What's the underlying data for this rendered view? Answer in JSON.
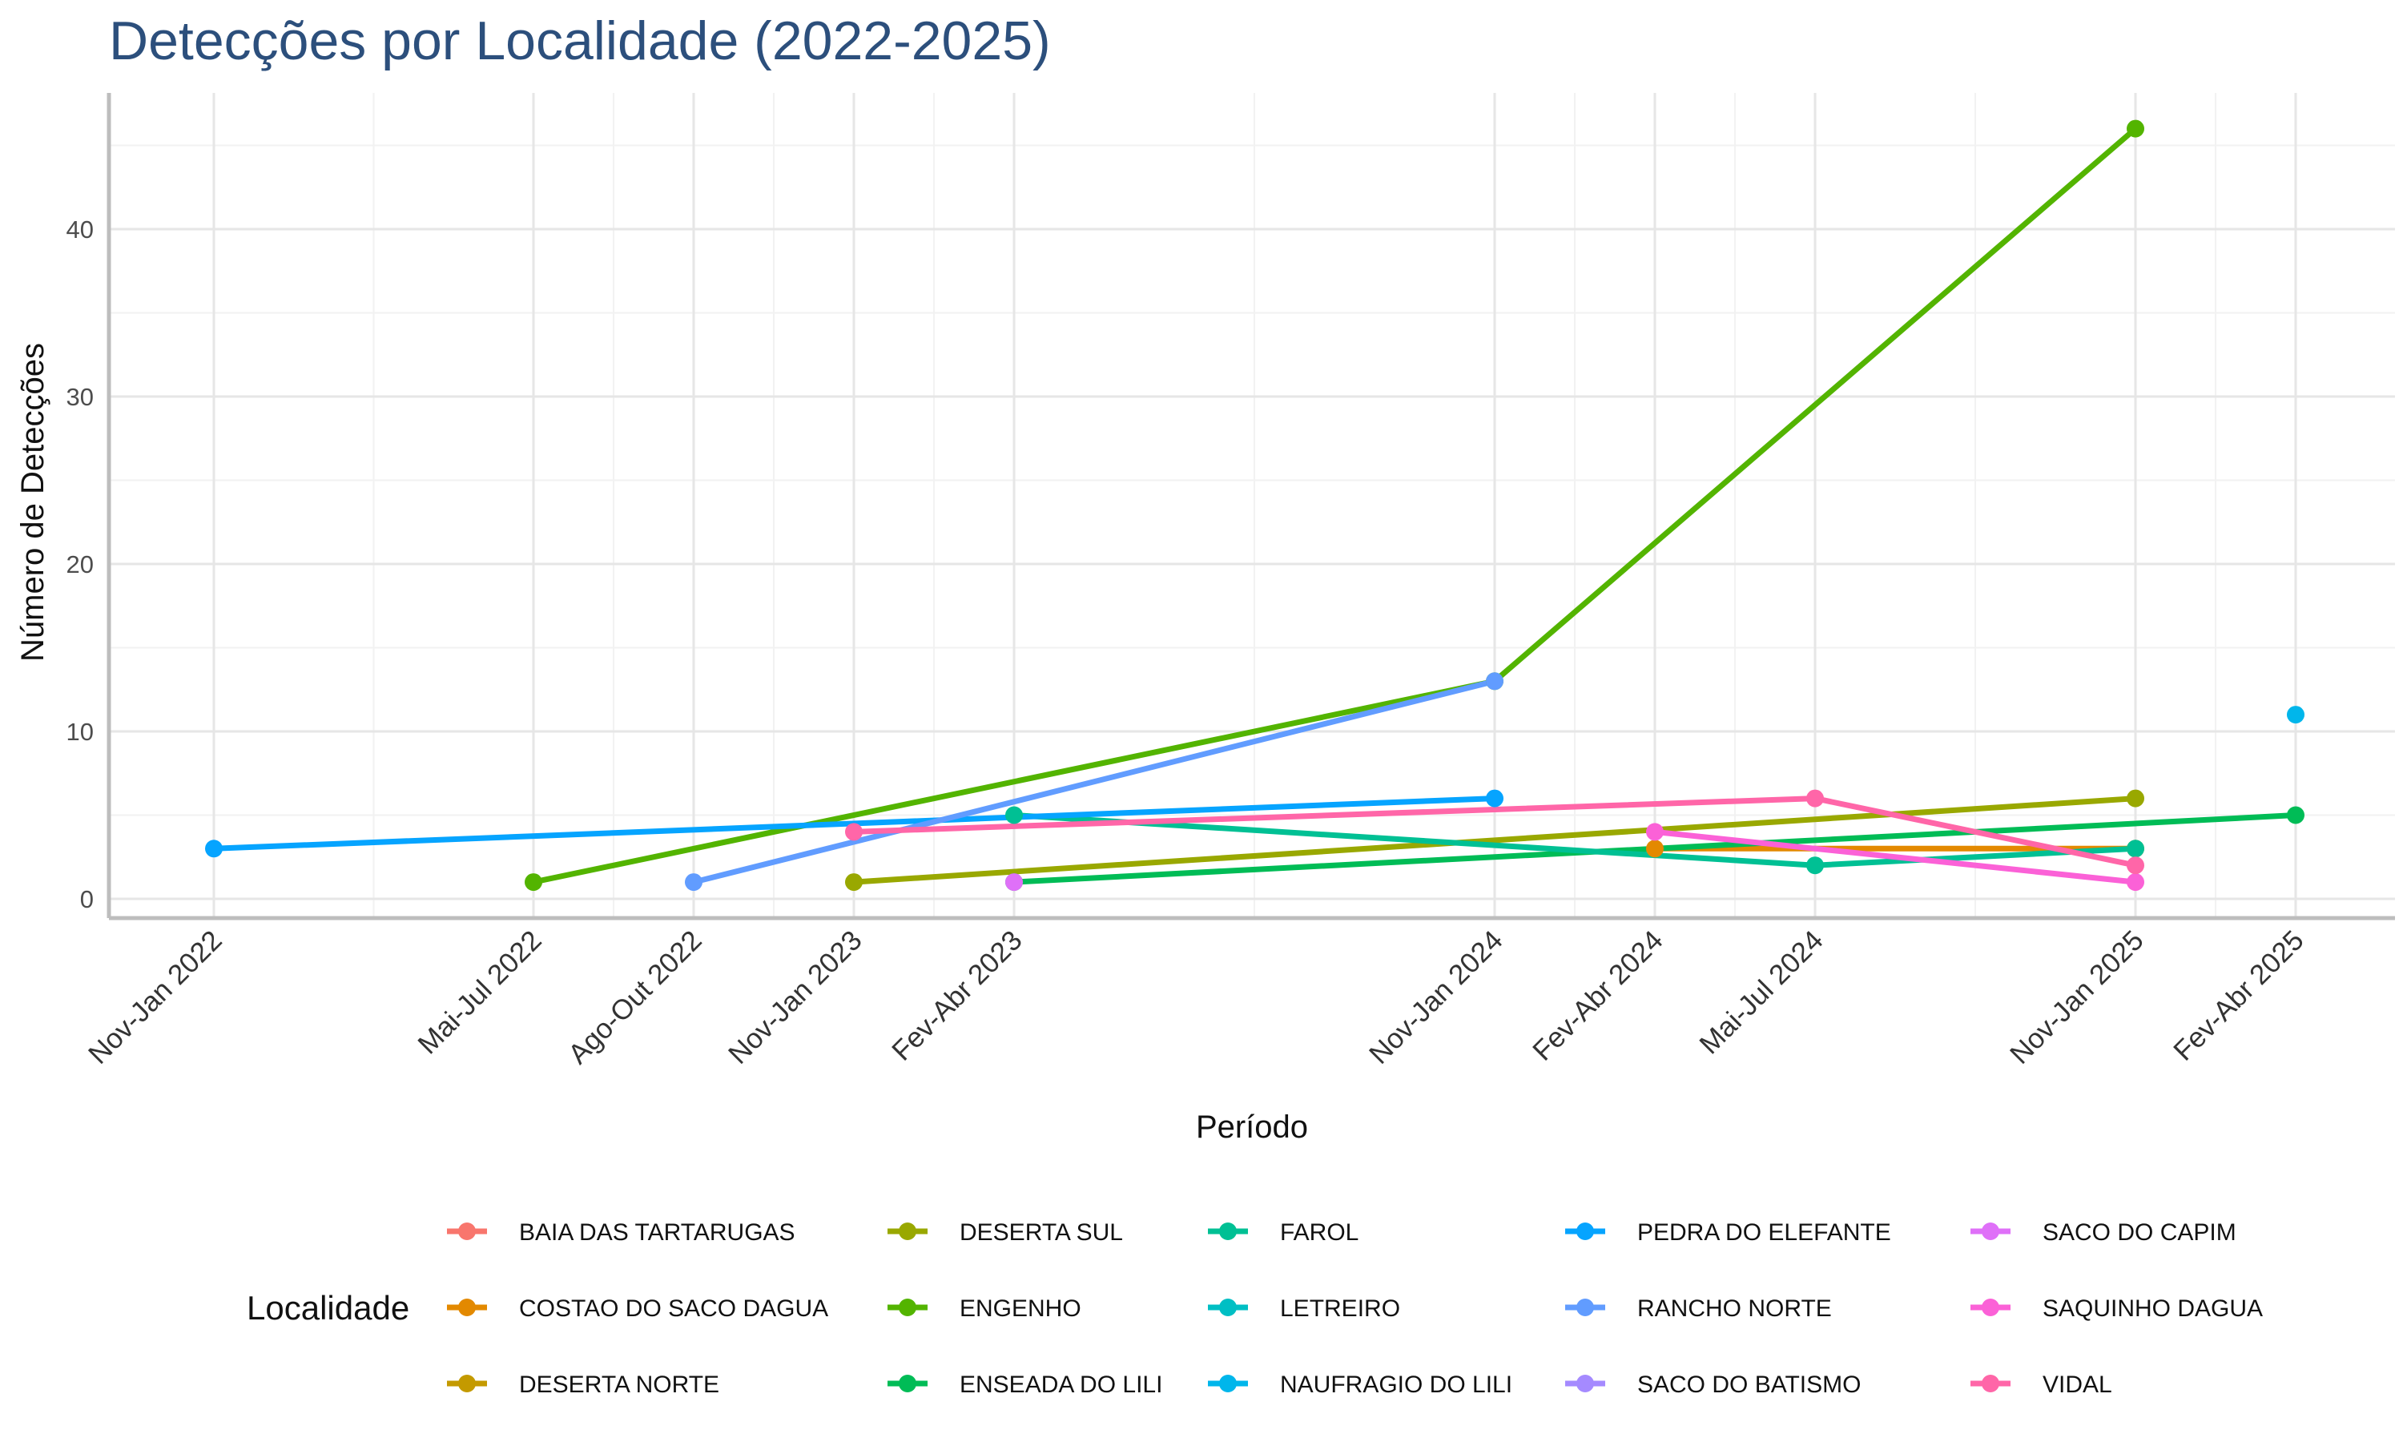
{
  "chart_data": {
    "type": "line",
    "title": "Detecções por Localidade (2022-2025)",
    "xlabel": "Período",
    "ylabel": "Número de Detecções",
    "x_categories": [
      "Nov-Jan 2022",
      "Mai-Jul 2022",
      "Ago-Out 2022",
      "Nov-Jan 2023",
      "Fev-Abr 2023",
      "Nov-Jan 2024",
      "Fev-Abr 2024",
      "Mai-Jul 2024",
      "Nov-Jan 2025",
      "Fev-Abr 2025"
    ],
    "y_ticks": [
      0,
      10,
      20,
      30,
      40
    ],
    "ylim": [
      -1,
      48
    ],
    "grid": true,
    "legend_title": "Localidade",
    "legend_position": "bottom",
    "series": [
      {
        "name": "BAIA DAS TARTARUGAS",
        "color": "#F8766D",
        "points": []
      },
      {
        "name": "COSTAO DO SACO DAGUA",
        "color": "#E38900",
        "points": [
          {
            "x": "Fev-Abr 2024",
            "y": 3
          },
          {
            "x": "Nov-Jan 2025",
            "y": 3
          }
        ]
      },
      {
        "name": "DESERTA NORTE",
        "color": "#C49A00",
        "points": []
      },
      {
        "name": "DESERTA SUL",
        "color": "#99A800",
        "points": [
          {
            "x": "Nov-Jan 2023",
            "y": 1
          },
          {
            "x": "Nov-Jan 2025",
            "y": 6
          }
        ]
      },
      {
        "name": "ENGENHO",
        "color": "#53B400",
        "points": [
          {
            "x": "Mai-Jul 2022",
            "y": 1
          },
          {
            "x": "Nov-Jan 2024",
            "y": 13
          },
          {
            "x": "Nov-Jan 2025",
            "y": 46
          }
        ]
      },
      {
        "name": "ENSEADA DO LILI",
        "color": "#00BC56",
        "points": [
          {
            "x": "Fev-Abr 2023",
            "y": 1
          },
          {
            "x": "Fev-Abr 2025",
            "y": 5
          }
        ]
      },
      {
        "name": "FAROL",
        "color": "#00C094",
        "points": [
          {
            "x": "Fev-Abr 2023",
            "y": 5
          },
          {
            "x": "Mai-Jul 2024",
            "y": 2
          },
          {
            "x": "Nov-Jan 2025",
            "y": 3
          }
        ]
      },
      {
        "name": "LETREIRO",
        "color": "#00BFC4",
        "points": []
      },
      {
        "name": "NAUFRAGIO DO LILI",
        "color": "#00B6EB",
        "points": [
          {
            "x": "Fev-Abr 2025",
            "y": 11
          }
        ]
      },
      {
        "name": "PEDRA DO ELEFANTE",
        "color": "#06A4FF",
        "points": [
          {
            "x": "Nov-Jan 2022",
            "y": 3
          },
          {
            "x": "Nov-Jan 2024",
            "y": 6
          }
        ]
      },
      {
        "name": "RANCHO NORTE",
        "color": "#619CFF",
        "points": [
          {
            "x": "Ago-Out 2022",
            "y": 1
          },
          {
            "x": "Nov-Jan 2024",
            "y": 13
          }
        ]
      },
      {
        "name": "SACO DO BATISMO",
        "color": "#A58AFF",
        "points": []
      },
      {
        "name": "SACO DO CAPIM",
        "color": "#DF70F8",
        "points": [
          {
            "x": "Fev-Abr 2023",
            "y": 1
          }
        ]
      },
      {
        "name": "SAQUINHO DAGUA",
        "color": "#FB61D7",
        "points": [
          {
            "x": "Fev-Abr 2024",
            "y": 4
          },
          {
            "x": "Nov-Jan 2025",
            "y": 1
          }
        ]
      },
      {
        "name": "VIDAL",
        "color": "#FF66A8",
        "points": [
          {
            "x": "Nov-Jan 2023",
            "y": 4
          },
          {
            "x": "Mai-Jul 2024",
            "y": 6
          },
          {
            "x": "Nov-Jan 2025",
            "y": 2
          }
        ]
      }
    ]
  }
}
